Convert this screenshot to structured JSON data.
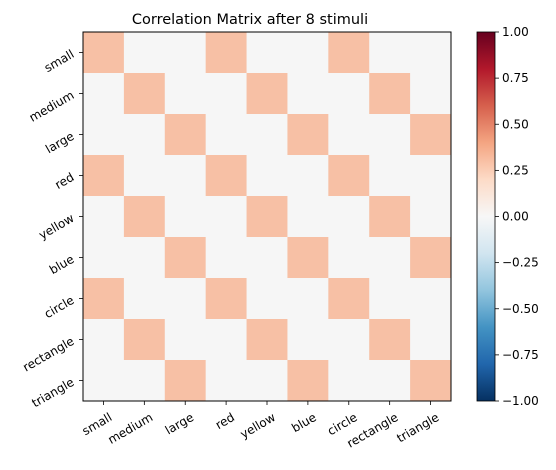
{
  "chart_data": {
    "type": "heatmap",
    "title": "Correlation Matrix after 8 stimuli",
    "xlabel": "",
    "ylabel": "",
    "labels": [
      "small",
      "medium",
      "large",
      "red",
      "yellow",
      "blue",
      "circle",
      "rectangle",
      "triangle"
    ],
    "values": [
      [
        0.33,
        0,
        0,
        0.33,
        0,
        0,
        0.33,
        0,
        0
      ],
      [
        0,
        0.33,
        0,
        0,
        0.33,
        0,
        0,
        0.33,
        0
      ],
      [
        0,
        0,
        0.33,
        0,
        0,
        0.33,
        0,
        0,
        0.33
      ],
      [
        0.33,
        0,
        0,
        0.33,
        0,
        0,
        0.33,
        0,
        0
      ],
      [
        0,
        0.33,
        0,
        0,
        0.33,
        0,
        0,
        0.33,
        0
      ],
      [
        0,
        0,
        0.33,
        0,
        0,
        0.33,
        0,
        0,
        0.33
      ],
      [
        0.33,
        0,
        0,
        0.33,
        0,
        0,
        0.33,
        0,
        0
      ],
      [
        0,
        0.33,
        0,
        0,
        0.33,
        0,
        0,
        0.33,
        0
      ],
      [
        0,
        0,
        0.33,
        0,
        0,
        0.33,
        0,
        0,
        0.33
      ]
    ],
    "colormap": "RdBu_r",
    "vmin": -1,
    "vmax": 1,
    "colorbar_ticks": [
      "1.00",
      "0.75",
      "0.50",
      "0.25",
      "0.00",
      "−0.25",
      "−0.50",
      "−0.75",
      "−1.00"
    ],
    "colorbar_tick_values": [
      1,
      0.75,
      0.5,
      0.25,
      0,
      -0.25,
      -0.5,
      -0.75,
      -1
    ],
    "colormap_stops": [
      "#053061",
      "#2166ac",
      "#4393c3",
      "#92c5de",
      "#d1e5f0",
      "#f7f7f7",
      "#fddbc7",
      "#f4a582",
      "#d6604d",
      "#b2182b",
      "#67001f"
    ],
    "colors": {
      "cell_high": "#f7c0a5",
      "cell_zero": "#f6f6f6"
    },
    "grid": false,
    "legend": "colorbar-right"
  }
}
